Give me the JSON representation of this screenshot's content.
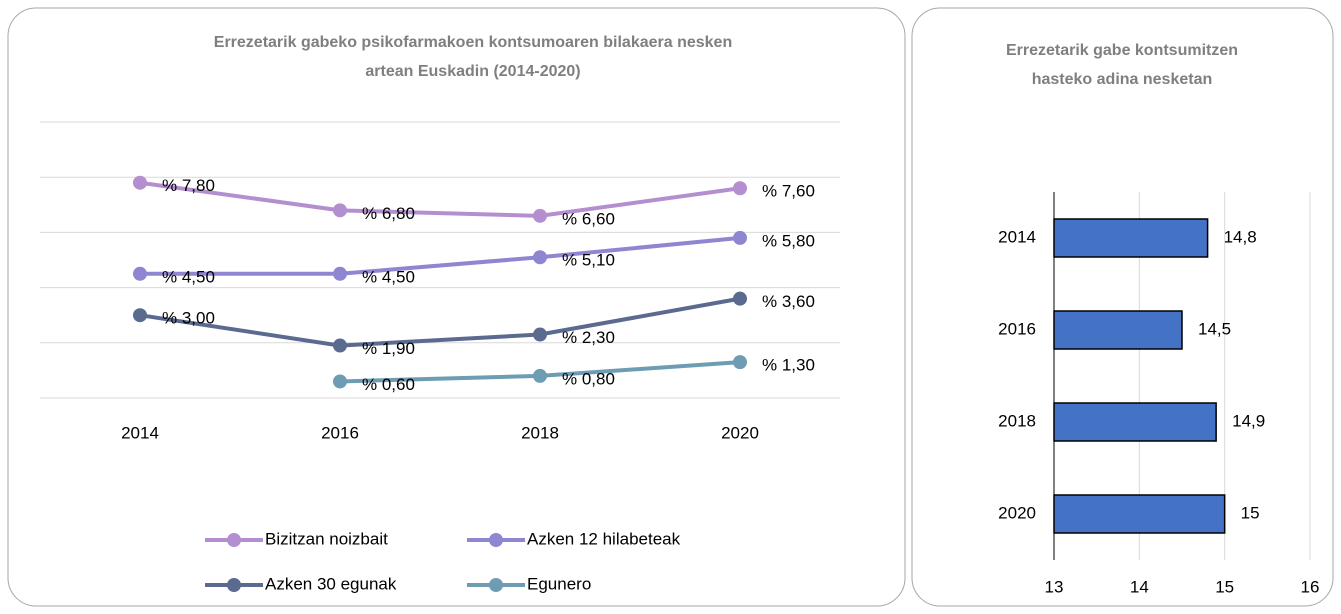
{
  "chart_data": [
    {
      "type": "line",
      "title": [
        "Errezetarik gabeko psikofarmakoen kontsumoaren bilakaera nesken",
        "artean Euskadin (2014-2020)"
      ],
      "categories": [
        "2014",
        "2016",
        "2018",
        "2020"
      ],
      "ylim": [
        0,
        10
      ],
      "yticks": [
        0,
        2,
        4,
        6,
        8,
        10
      ],
      "grid": true,
      "series": [
        {
          "name": "Bizitzan noizbait",
          "color": "#b48fcf",
          "values": [
            7.8,
            6.8,
            6.6,
            7.6
          ],
          "value_labels": [
            "% 7,80",
            "% 6,80",
            "% 6,60",
            "% 7,60"
          ]
        },
        {
          "name": "Azken 12 hilabeteak",
          "color": "#8f86d2",
          "values": [
            4.5,
            4.5,
            5.1,
            5.8
          ],
          "value_labels": [
            "% 4,50",
            "% 4,50",
            "% 5,10",
            "% 5,80"
          ]
        },
        {
          "name": "Azken 30 egunak",
          "color": "#5b6a8f",
          "values": [
            3.0,
            1.9,
            2.3,
            3.6
          ],
          "value_labels": [
            "% 3,00",
            "% 1,90",
            "% 2,30",
            "% 3,60"
          ]
        },
        {
          "name": "Egunero",
          "color": "#6e9db3",
          "values": [
            null,
            0.6,
            0.8,
            1.3
          ],
          "value_labels": [
            null,
            "% 0,60",
            "% 0,80",
            "% 1,30"
          ]
        }
      ]
    },
    {
      "type": "hbar",
      "title": [
        "Errezetarik gabe kontsumitzen",
        "hasteko adina nesketan"
      ],
      "categories": [
        "2014",
        "2016",
        "2018",
        "2020"
      ],
      "values": [
        14.8,
        14.5,
        14.9,
        15
      ],
      "value_labels": [
        "14,8",
        "14,5",
        "14,9",
        "15"
      ],
      "color": "#4472c4",
      "xlim": [
        13,
        16
      ],
      "xticks": [
        13,
        14,
        15,
        16
      ],
      "grid": true
    }
  ]
}
